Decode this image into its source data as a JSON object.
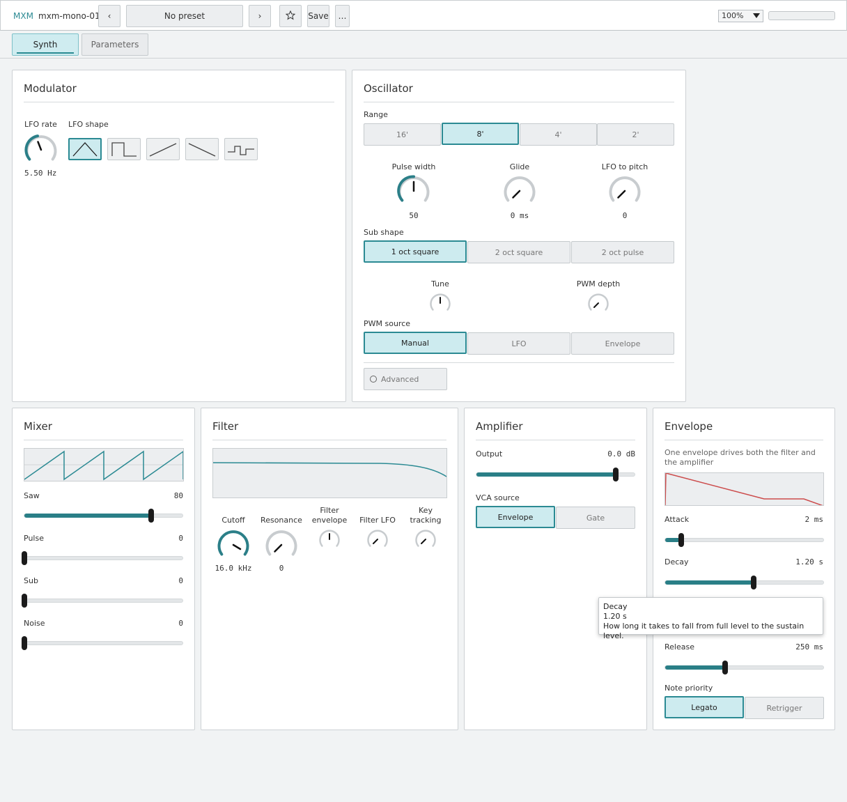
{
  "header": {
    "brand": "MXM",
    "patch_name": "mxm-mono-01",
    "prev_label": "‹",
    "preset_label": "No preset",
    "next_label": "›",
    "favorite_icon": "star-icon",
    "save_label": "Save",
    "more_label": "…",
    "zoom": "100%"
  },
  "tabs": [
    {
      "label": "Synth",
      "active": true
    },
    {
      "label": "Parameters",
      "active": false
    }
  ],
  "modulator": {
    "title": "Modulator",
    "lfo_rate_label": "LFO rate",
    "lfo_rate_value": "5.50 Hz",
    "lfo_shape_label": "LFO shape",
    "shapes": [
      "triangle-wave-icon",
      "square-wave-icon",
      "ramp-up-icon",
      "ramp-down-icon",
      "sample-hold-icon"
    ],
    "selected_shape": 0
  },
  "oscillator": {
    "title": "Oscillator",
    "range_label": "Range",
    "range_options": [
      "16'",
      "8'",
      "4'",
      "2'"
    ],
    "range_selected": 1,
    "pulse_width_label": "Pulse width",
    "pulse_width_value": "50",
    "glide_label": "Glide",
    "glide_value": "0 ms",
    "lfo_pitch_label": "LFO to pitch",
    "lfo_pitch_value": "0",
    "sub_shape_label": "Sub shape",
    "sub_options": [
      "1 oct square",
      "2 oct square",
      "2 oct pulse"
    ],
    "sub_selected": 0,
    "tune_label": "Tune",
    "pwm_depth_label": "PWM depth",
    "pwm_source_label": "PWM source",
    "pwm_options": [
      "Manual",
      "LFO",
      "Envelope"
    ],
    "pwm_selected": 0,
    "advanced_label": "Advanced"
  },
  "mixer": {
    "title": "Mixer",
    "channels": [
      {
        "label": "Saw",
        "value": "80",
        "level": 0.8
      },
      {
        "label": "Pulse",
        "value": "0",
        "level": 0
      },
      {
        "label": "Sub",
        "value": "0",
        "level": 0
      },
      {
        "label": "Noise",
        "value": "0",
        "level": 0
      }
    ]
  },
  "filter": {
    "title": "Filter",
    "cutoff_label": "Cutoff",
    "cutoff_value": "16.0 kHz",
    "resonance_label": "Resonance",
    "resonance_value": "0",
    "filter_env_label_1": "Filter",
    "filter_env_label_2": "envelope",
    "filter_lfo_label": "Filter LFO",
    "key_tracking_label_1": "Key",
    "key_tracking_label_2": "tracking"
  },
  "amplifier": {
    "title": "Amplifier",
    "output_label": "Output",
    "output_value": "0.0 dB",
    "output_level": 0.88,
    "vca_source_label": "VCA source",
    "vca_options": [
      "Envelope",
      "Gate"
    ],
    "vca_selected": 0
  },
  "envelope": {
    "title": "Envelope",
    "description": "One envelope drives both the filter and the amplifier",
    "attack_label": "Attack",
    "attack_value": "2 ms",
    "attack_level": 0.1,
    "decay_label": "Decay",
    "decay_value": "1.20 s",
    "decay_level": 0.56,
    "release_label": "Release",
    "release_value": "250 ms",
    "release_level": 0.38,
    "note_priority_label": "Note priority",
    "priority_options": [
      "Legato",
      "Retrigger"
    ],
    "priority_selected": 0
  },
  "tooltip": {
    "title": "Decay",
    "value": "1.20 s",
    "text": "How long it takes to fall from full level to the sustain level."
  },
  "colors": {
    "accent": "#2b8a93",
    "selected_fill": "#cdebef",
    "envelope_curve": "#cc4b4b"
  }
}
